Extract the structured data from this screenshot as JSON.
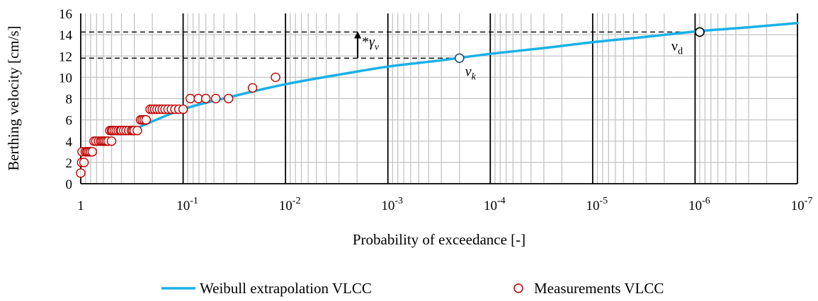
{
  "chart_data": {
    "type": "scatter",
    "xlabel": "Probability of exceedance [-]",
    "ylabel": "Berthing velocity [cm/s]",
    "x_scale": "log-reversed",
    "xlim": [
      1,
      1e-07
    ],
    "ylim": [
      0,
      16
    ],
    "y_ticks": [
      "0",
      "2",
      "4",
      "6",
      "8",
      "10",
      "12",
      "14",
      "16"
    ],
    "x_ticks": [
      {
        "base": "1",
        "exp": ""
      },
      {
        "base": "10",
        "exp": "-1"
      },
      {
        "base": "10",
        "exp": "-2"
      },
      {
        "base": "10",
        "exp": "-3"
      },
      {
        "base": "10",
        "exp": "-4"
      },
      {
        "base": "10",
        "exp": "-5"
      },
      {
        "base": "10",
        "exp": "-6"
      },
      {
        "base": "10",
        "exp": "-7"
      }
    ],
    "grid": true,
    "legend_position": "bottom",
    "series": [
      {
        "name": "Weibull extrapolation VLCC",
        "kind": "line",
        "color": "#1ab0e6",
        "x": [
          0.32,
          0.1,
          0.03,
          0.01,
          0.003,
          0.001,
          0.0003,
          0.0001,
          3e-05,
          1e-05,
          3e-06,
          1e-06,
          3e-07,
          1e-07
        ],
        "y": [
          5.0,
          7.0,
          8.3,
          9.35,
          10.25,
          11.0,
          11.6,
          12.2,
          12.75,
          13.3,
          13.8,
          14.3,
          14.7,
          15.1
        ]
      },
      {
        "name": "Measurements VLCC",
        "kind": "markers",
        "color": "#c00000",
        "x": [
          1.0,
          0.98,
          0.93,
          0.97,
          0.9,
          0.87,
          0.86,
          0.83,
          0.8,
          0.77,
          0.74,
          0.71,
          0.67,
          0.64,
          0.62,
          0.6,
          0.58,
          0.56,
          0.54,
          0.52,
          0.5,
          0.5,
          0.49,
          0.47,
          0.45,
          0.43,
          0.41,
          0.4,
          0.38,
          0.36,
          0.34,
          0.32,
          0.31,
          0.3,
          0.28,
          0.26,
          0.25,
          0.24,
          0.23,
          0.21,
          0.2,
          0.19,
          0.18,
          0.17,
          0.16,
          0.15,
          0.14,
          0.13,
          0.12,
          0.11,
          0.1,
          0.085,
          0.071,
          0.06,
          0.048,
          0.036,
          0.021,
          0.0125
        ],
        "y": [
          1,
          2,
          2,
          3,
          3,
          3,
          3,
          3,
          3,
          3,
          4,
          4,
          4,
          4,
          4,
          4,
          4,
          4,
          4,
          5,
          4,
          5,
          5,
          5,
          5,
          5,
          5,
          5,
          5,
          5,
          5,
          5,
          5,
          5,
          5,
          6,
          6,
          6,
          6,
          7,
          7,
          7,
          7,
          7,
          7,
          7,
          7,
          7,
          7,
          7,
          7,
          8,
          8,
          8,
          8,
          8,
          9,
          10
        ]
      }
    ],
    "special_points": [
      {
        "label": "ν",
        "sub": "k",
        "x": 0.0002,
        "y": 11.8
      },
      {
        "label": "ν",
        "sub": "d",
        "x": 9e-07,
        "y": 14.25
      }
    ],
    "reference_lines_y": [
      14.25,
      11.8
    ],
    "annotations": [
      {
        "prefix": "*",
        "symbol": "γ",
        "sub": "ν"
      }
    ]
  },
  "legend": {
    "line_label": "Weibull extrapolation VLCC",
    "marker_label": "Measurements VLCC"
  }
}
